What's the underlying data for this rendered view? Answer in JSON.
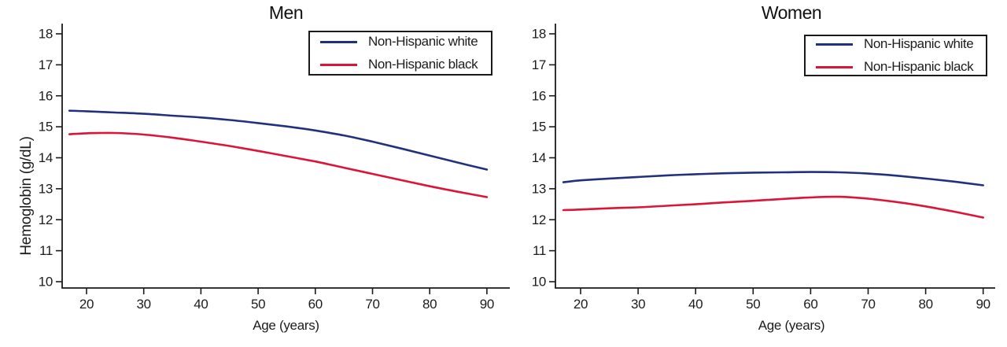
{
  "figure": {
    "background": "#ffffff",
    "axis_color": "#1a1a1a"
  },
  "chart_data": [
    {
      "type": "line",
      "title": "Men",
      "xlabel": "Age (years)",
      "ylabel": "Hemoglobin (g/dL)",
      "xlim": [
        16,
        92
      ],
      "ylim": [
        10,
        18
      ],
      "x_ticks": [
        20,
        30,
        40,
        50,
        60,
        70,
        80,
        90
      ],
      "y_ticks": [
        10,
        11,
        12,
        13,
        14,
        15,
        16,
        17,
        18
      ],
      "grid": false,
      "legend_position": "top-right",
      "x": [
        17,
        20,
        25,
        30,
        35,
        40,
        45,
        50,
        55,
        60,
        65,
        70,
        75,
        80,
        85,
        90
      ],
      "series": [
        {
          "name": "Non-Hispanic white",
          "color": "#21317e",
          "values": [
            15.52,
            15.5,
            15.46,
            15.42,
            15.36,
            15.3,
            15.22,
            15.12,
            15.01,
            14.88,
            14.72,
            14.52,
            14.3,
            14.07,
            13.84,
            13.62
          ]
        },
        {
          "name": "Non-Hispanic black",
          "color": "#dc1438",
          "values": [
            14.76,
            14.79,
            14.8,
            14.75,
            14.65,
            14.52,
            14.38,
            14.22,
            14.05,
            13.88,
            13.68,
            13.48,
            13.28,
            13.08,
            12.9,
            12.73
          ]
        }
      ]
    },
    {
      "type": "line",
      "title": "Women",
      "xlabel": "Age (years)",
      "ylabel": "",
      "xlim": [
        16,
        92
      ],
      "ylim": [
        10,
        18
      ],
      "x_ticks": [
        20,
        30,
        40,
        50,
        60,
        70,
        80,
        90
      ],
      "y_ticks": [
        10,
        11,
        12,
        13,
        14,
        15,
        16,
        17,
        18
      ],
      "grid": false,
      "legend_position": "top-right",
      "x": [
        17,
        20,
        25,
        30,
        35,
        40,
        45,
        50,
        55,
        60,
        65,
        70,
        75,
        80,
        85,
        90
      ],
      "series": [
        {
          "name": "Non-Hispanic white",
          "color": "#21317e",
          "values": [
            13.21,
            13.27,
            13.33,
            13.38,
            13.43,
            13.47,
            13.5,
            13.52,
            13.53,
            13.54,
            13.53,
            13.49,
            13.42,
            13.33,
            13.23,
            13.11
          ]
        },
        {
          "name": "Non-Hispanic black",
          "color": "#dc1438",
          "values": [
            12.31,
            12.33,
            12.37,
            12.4,
            12.45,
            12.5,
            12.56,
            12.61,
            12.67,
            12.72,
            12.74,
            12.68,
            12.57,
            12.43,
            12.26,
            12.07
          ]
        }
      ]
    }
  ]
}
